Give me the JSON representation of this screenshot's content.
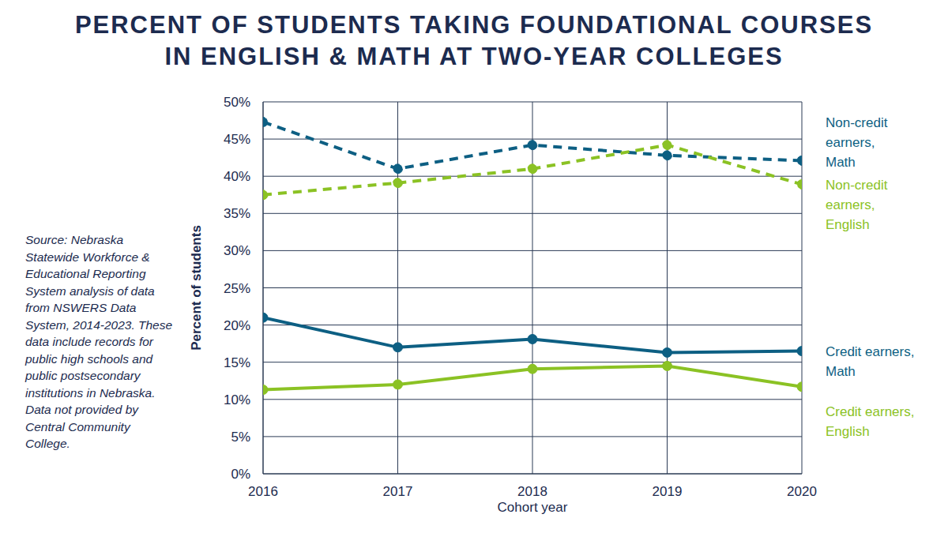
{
  "chart_data": {
    "type": "line",
    "title": "PERCENT OF STUDENTS TAKING FOUNDATIONAL COURSES\nIN ENGLISH & MATH AT TWO-YEAR COLLEGES",
    "source": "Source: Nebraska Statewide Workforce & Educational Reporting System analysis of data from NSWERS Data System, 2014-2023. These data include records for public high schools and public postsecondary institutions in Nebraska. Data not provided by Central Community College.",
    "x_label": "Cohort year",
    "y_label": "Percent of students",
    "x": [
      2016,
      2017,
      2018,
      2019,
      2020
    ],
    "xlim": [
      2016,
      2020
    ],
    "xticks": [
      2016,
      2017,
      2018,
      2019,
      2020
    ],
    "ylim": [
      0,
      50
    ],
    "yticks": [
      {
        "value": 0,
        "label": "0%"
      },
      {
        "value": 5,
        "label": "5%"
      },
      {
        "value": 10,
        "label": "10%"
      },
      {
        "value": 15,
        "label": "15%"
      },
      {
        "value": 20,
        "label": "20%"
      },
      {
        "value": 25,
        "label": "25%"
      },
      {
        "value": 30,
        "label": "30%"
      },
      {
        "value": 35,
        "label": "35%"
      },
      {
        "value": 40,
        "label": "40%"
      },
      {
        "value": 45,
        "label": "45%"
      },
      {
        "value": 50,
        "label": "50%"
      }
    ],
    "grid": true,
    "series": [
      {
        "name": "Non-credit earners, Math",
        "color": "#0d5f83",
        "line_style": "dashed",
        "marker": "circle",
        "values": [
          47.3,
          41.0,
          44.2,
          42.8,
          42.1
        ]
      },
      {
        "name": "Non-credit earners, English",
        "color": "#8bc224",
        "line_style": "dashed",
        "marker": "circle",
        "values": [
          37.5,
          39.1,
          41.0,
          44.2,
          38.9
        ]
      },
      {
        "name": "Credit earners, Math",
        "color": "#0d5f83",
        "line_style": "solid",
        "marker": "circle",
        "values": [
          21.0,
          17.0,
          18.1,
          16.3,
          16.5
        ]
      },
      {
        "name": "Credit earners, English",
        "color": "#8bc224",
        "line_style": "solid",
        "marker": "circle",
        "values": [
          11.3,
          12.0,
          14.1,
          14.5,
          11.7
        ]
      }
    ]
  }
}
